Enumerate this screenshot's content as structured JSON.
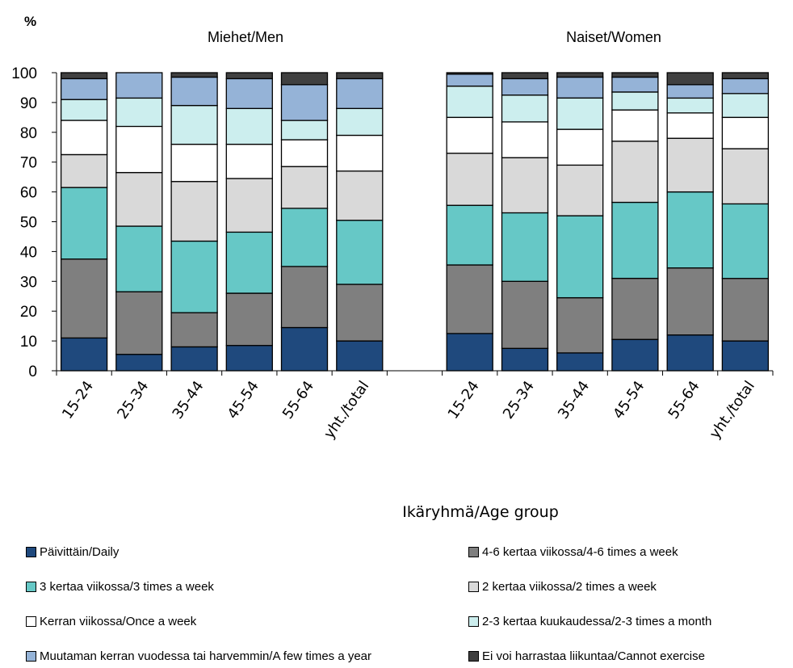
{
  "chart_data": {
    "type": "bar",
    "stacked": true,
    "y_unit_label": "%",
    "xlabel": "Ikäryhmä/Age group",
    "ylim": [
      0,
      100
    ],
    "yticks": [
      0,
      10,
      20,
      30,
      40,
      50,
      60,
      70,
      80,
      90,
      100
    ],
    "grid": false,
    "legend_position": "bottom",
    "groups": [
      {
        "title": "Miehet/Men",
        "categories": [
          "15-24",
          "25-34",
          "35-44",
          "45-54",
          "55-64",
          "yht./total"
        ]
      },
      {
        "title": "Naiset/Women",
        "categories": [
          "15-24",
          "25-34",
          "35-44",
          "45-54",
          "55-64",
          "yht./total"
        ]
      }
    ],
    "series": [
      {
        "name": "Päivittäin/Daily",
        "color": "#1F497D",
        "men": [
          11,
          5.5,
          8,
          8.5,
          14.5,
          10
        ],
        "women": [
          12.5,
          7.5,
          6,
          10.5,
          12,
          10
        ]
      },
      {
        "name": "4-6 kertaa viikossa/4-6 times a week",
        "color": "#7F7F7F",
        "men": [
          26.5,
          21,
          11.5,
          17.5,
          20.5,
          19
        ],
        "women": [
          23,
          22.5,
          18.5,
          20.5,
          22.5,
          21
        ]
      },
      {
        "name": "3 kertaa viikossa/3 times a week",
        "color": "#66C8C6",
        "men": [
          24,
          22,
          24,
          20.5,
          19.5,
          21.5
        ],
        "women": [
          20,
          23,
          27.5,
          25.5,
          25.5,
          25
        ]
      },
      {
        "name": "2 kertaa viikossa/2 times a week",
        "color": "#D9D9D9",
        "men": [
          11,
          18,
          20,
          18,
          14,
          16.5
        ],
        "women": [
          17.5,
          18.5,
          17,
          20.5,
          18,
          18.5
        ]
      },
      {
        "name": "Kerran viikossa/Once a week",
        "color": "#FFFFFF",
        "men": [
          11.5,
          15.5,
          12.5,
          11.5,
          9,
          12
        ],
        "women": [
          12,
          12,
          12,
          10.5,
          8.5,
          10.5
        ]
      },
      {
        "name": "2-3 kertaa kuukaudessa/2-3 times a month",
        "color": "#CCEEEE",
        "men": [
          7,
          9.5,
          13,
          12,
          6.5,
          9
        ],
        "women": [
          10.5,
          9,
          10.5,
          6,
          5,
          8
        ]
      },
      {
        "name": "Muutaman kerran vuodessa tai harvemmin/A few times a year",
        "color": "#95B3D7",
        "men": [
          7,
          8.5,
          9.5,
          10,
          12,
          10
        ],
        "women": [
          4,
          5.5,
          7,
          5,
          4.5,
          5
        ]
      },
      {
        "name": "Ei voi harrastaa liikuntaa/Cannot exercise",
        "color": "#404040",
        "men": [
          2,
          0,
          1.5,
          2,
          4,
          2
        ],
        "women": [
          0.5,
          2,
          1.5,
          1.5,
          4,
          2
        ]
      }
    ]
  }
}
